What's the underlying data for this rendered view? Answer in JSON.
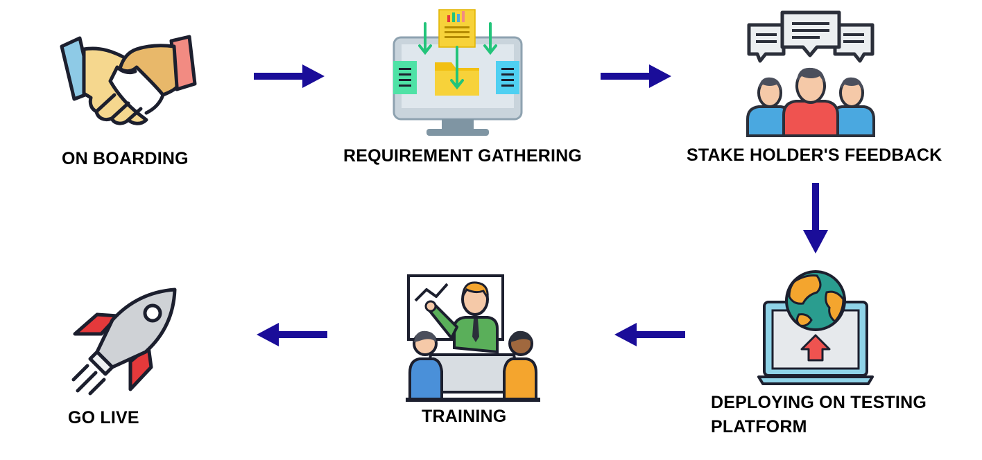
{
  "steps": [
    {
      "id": "onboarding",
      "label": "ON BOARDING",
      "icon": "handshake-icon"
    },
    {
      "id": "requirement",
      "label": "REQUIREMENT GATHERING",
      "icon": "monitor-documents-icon"
    },
    {
      "id": "feedback",
      "label": "STAKE HOLDER'S FEEDBACK",
      "icon": "people-chat-icon"
    },
    {
      "id": "deploying",
      "label_line1": "DEPLOYING ON TESTING",
      "label_line2": "PLATFORM",
      "icon": "laptop-globe-upload-icon"
    },
    {
      "id": "training",
      "label": "TRAINING",
      "icon": "presentation-meeting-icon"
    },
    {
      "id": "golive",
      "label": "GO LIVE",
      "icon": "rocket-icon"
    }
  ],
  "colors": {
    "arrow": "#1a0d99",
    "text": "#000000",
    "outline": "#1c1f2e",
    "skin": "#f5d78e",
    "green": "#22c47a",
    "teal": "#2a9d8f",
    "orange": "#f4a52e",
    "red": "#e5393b",
    "blue": "#4aa8e0"
  }
}
